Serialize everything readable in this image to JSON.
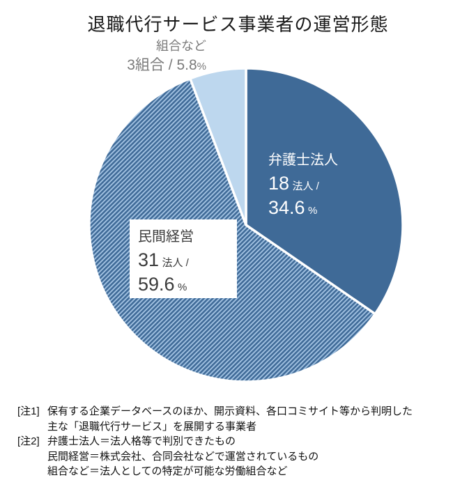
{
  "title": "退職代行サービス事業者の運営形態",
  "chart_data": {
    "type": "pie",
    "title": "退職代行サービス事業者の運営形態",
    "start_angle": "top",
    "direction": "clockwise",
    "legend_position": "none",
    "separator_color": "#ffffff",
    "slices": [
      {
        "label": "弁護士法人",
        "count": 18,
        "count_unit": "法人",
        "percent": 34.6,
        "fill": "solid",
        "color": "#3f6a97",
        "text_color": "#ffffff"
      },
      {
        "label": "民間経営",
        "count": 31,
        "count_unit": "法人",
        "percent": 59.6,
        "fill": "hatch",
        "hatch_colors": [
          "#3f6a97",
          "#a3c3e3"
        ],
        "text_color": "#3b3b3b"
      },
      {
        "label": "組合など",
        "count": 3,
        "count_unit": "組合",
        "percent": 5.8,
        "fill": "solid",
        "color": "#bdd7ee",
        "text_color": "#7a7a7a"
      }
    ]
  },
  "labels": {
    "lawyer": {
      "name": "弁護士法人",
      "count": "18",
      "count_suffix": "法人 /",
      "percent": "34.6",
      "percent_suffix": "%"
    },
    "private": {
      "name": "民間経営",
      "count": "31",
      "count_suffix": "法人 /",
      "percent": "59.6",
      "percent_suffix": "%"
    },
    "union": {
      "name": "組合など",
      "value": "3組合 / 5.8",
      "percent_suffix": "%"
    }
  },
  "notes": [
    {
      "tag": "[注1]",
      "lines": [
        "保有する企業データベースのほか、開示資料、各口コミサイト等から判明した",
        "主な「退職代行サービス」を展開する事業者"
      ]
    },
    {
      "tag": "[注2]",
      "lines": [
        "弁護士法人＝法人格等で判別できたもの",
        "民間経営＝株式会社、合同会社などで運営されているもの",
        "組合など＝法人としての特定が可能な労働組合など"
      ]
    }
  ]
}
